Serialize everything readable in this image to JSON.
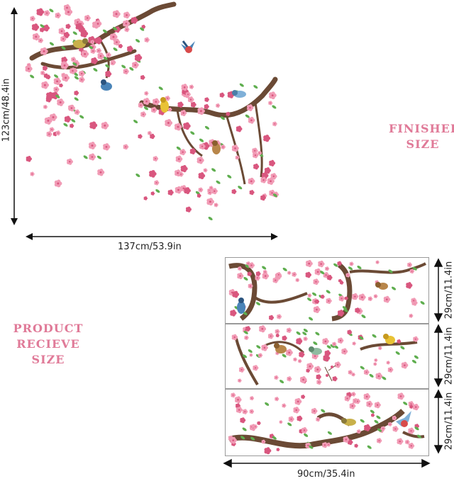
{
  "finished": {
    "title_line1": "FINISHED",
    "title_line2": "SIZE",
    "height_label": "123cm/48.4in",
    "width_label": "137cm/53.9in"
  },
  "product": {
    "title_line1": "PRODUCT",
    "title_line2": "RECIEVE SIZE",
    "sheet_labels": [
      "29cm/11.4in",
      "29cm/11.4in",
      "29cm/11.4in"
    ],
    "width_label": "90cm/35.4in"
  },
  "colors": {
    "title_pink": "#e07a98",
    "blossom": "#f19bb5",
    "blossom_dark": "#d9577f",
    "branch": "#6b4a35",
    "leaf": "#5fae4f"
  }
}
